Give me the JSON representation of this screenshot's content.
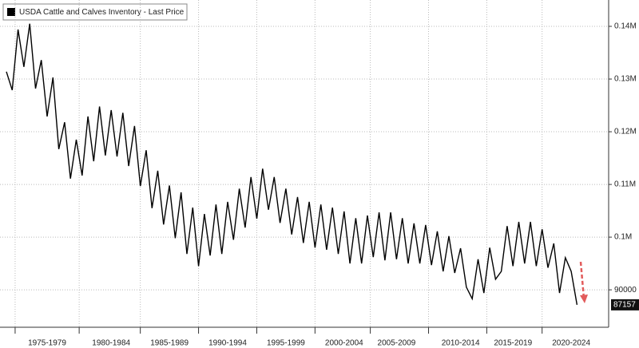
{
  "chart_data": {
    "type": "line",
    "legend": "USDA Cattle and Calves Inventory - Last Price",
    "categories": [
      null,
      null,
      null,
      null,
      null,
      null,
      null,
      "1975-1979",
      null,
      null,
      null,
      null,
      null,
      null,
      null,
      null,
      null,
      null,
      "1980-1984",
      null,
      null,
      null,
      null,
      null,
      null,
      null,
      null,
      null,
      "1985-1989",
      null,
      null,
      null,
      null,
      null,
      null,
      null,
      null,
      null,
      "1990-1994",
      null,
      null,
      null,
      null,
      null,
      null,
      null,
      null,
      null,
      "1995-1999",
      null,
      null,
      null,
      null,
      null,
      null,
      null,
      null,
      null,
      "2000-2004",
      null,
      null,
      null,
      null,
      null,
      null,
      null,
      null,
      "2005-2009",
      null,
      null,
      null,
      null,
      null,
      null,
      null,
      null,
      null,
      null,
      "2010-2014",
      null,
      null,
      null,
      null,
      null,
      null,
      null,
      null,
      "2015-2019",
      null,
      null,
      null,
      null,
      null,
      null,
      null,
      null,
      null,
      "2020-2024",
      null
    ],
    "series": [
      {
        "name": "USDA Cattle and Calves Inventory - Last Price",
        "color": "#000000",
        "values": [
          131400,
          127900,
          139400,
          132300,
          140500,
          128200,
          133600,
          122900,
          130300,
          116700,
          121800,
          111100,
          118500,
          111700,
          122900,
          114400,
          124800,
          115500,
          124100,
          115300,
          123600,
          113500,
          121100,
          109700,
          116500,
          105500,
          112600,
          102400,
          109800,
          99800,
          108500,
          96800,
          105600,
          94500,
          104400,
          96500,
          106200,
          96800,
          106700,
          99500,
          109200,
          101800,
          111400,
          103500,
          113000,
          105200,
          111400,
          102700,
          109200,
          100500,
          107600,
          98900,
          106700,
          98000,
          106200,
          97600,
          105600,
          96800,
          104900,
          95000,
          103600,
          95000,
          104100,
          96200,
          104700,
          95600,
          104700,
          95800,
          103600,
          95000,
          102600,
          95000,
          102300,
          94700,
          101100,
          93500,
          100200,
          93200,
          97900,
          90500,
          88300,
          95800,
          89400,
          98000,
          92000,
          93500,
          102100,
          94500,
          102900,
          95000,
          102900,
          94500,
          101500,
          94200,
          98800,
          89400,
          96100,
          93500,
          87157
        ]
      }
    ],
    "ylim": [
      82900,
      145000
    ],
    "yticks": [
      90000,
      {
        "value": 100000,
        "label": "0.1M"
      },
      {
        "value": 110000,
        "label": "0.11M"
      },
      {
        "value": 120000,
        "label": "0.12M"
      },
      {
        "value": 130000,
        "label": "0.13M"
      },
      {
        "value": 140000,
        "label": "0.14M"
      }
    ],
    "grid": true
  }
}
